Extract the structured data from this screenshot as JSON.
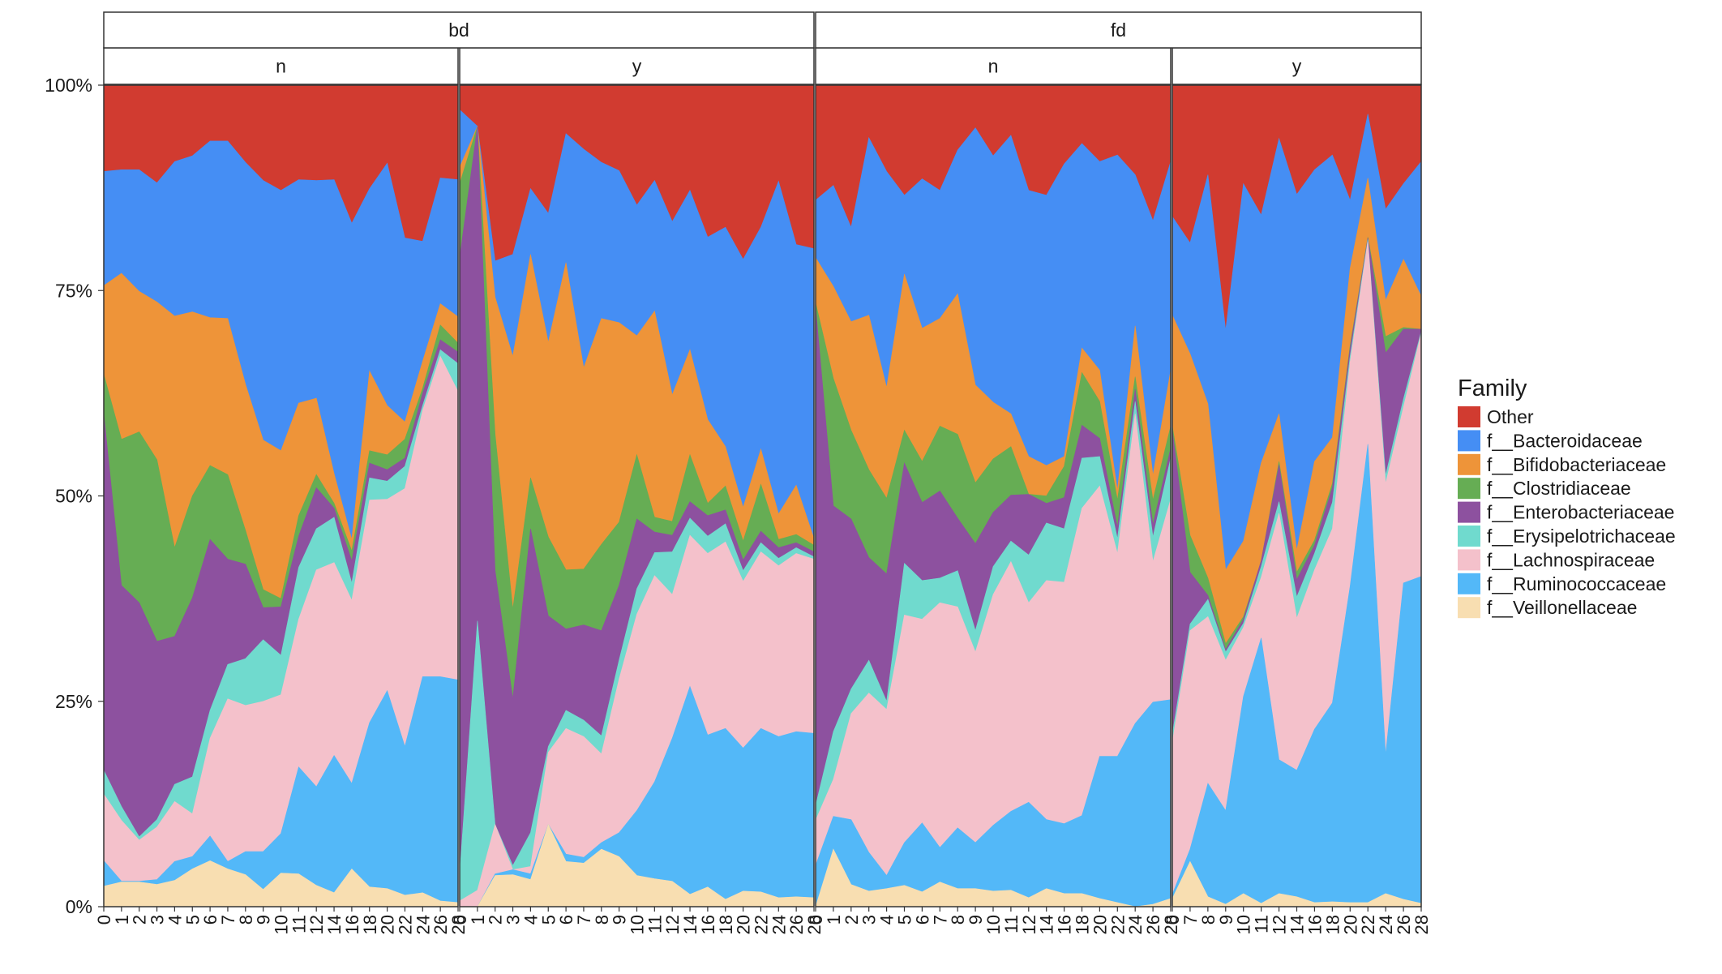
{
  "chart_data": {
    "type": "area",
    "stacking": "percent",
    "facet_rows": [
      "bd",
      "fd"
    ],
    "facet_sub": [
      "n",
      "y"
    ],
    "y_ticks": [
      "0%",
      "25%",
      "50%",
      "75%",
      "100%"
    ],
    "ylim": [
      0,
      1
    ],
    "grid": false,
    "legend": {
      "title": "Family",
      "position": "right",
      "items": [
        {
          "name": "Other",
          "color": "#D13B30"
        },
        {
          "name": "f__Bacteroidaceae",
          "color": "#458EF4"
        },
        {
          "name": "f__Bifidobacteriaceae",
          "color": "#EE9439"
        },
        {
          "name": "f__Clostridiaceae",
          "color": "#66AD54"
        },
        {
          "name": "f__Enterobacteriaceae",
          "color": "#8D519F"
        },
        {
          "name": "f__Erysipelotrichaceae",
          "color": "#70DACE"
        },
        {
          "name": "f__Lachnospiraceae",
          "color": "#F4C1CB"
        },
        {
          "name": "f__Ruminococcaceae",
          "color": "#53B8F8"
        },
        {
          "name": "f__Veillonellaceae",
          "color": "#F8DEB1"
        }
      ]
    },
    "panels": [
      {
        "facet": "bd",
        "sub": "n",
        "x": [
          "0",
          "1",
          "2",
          "3",
          "4",
          "5",
          "6",
          "7",
          "8",
          "9",
          "10",
          "11",
          "12",
          "14",
          "16",
          "18",
          "20",
          "22",
          "24",
          "26",
          "28"
        ],
        "boundaries": [
          [
            0.025,
            0.03,
            0.03,
            0.027,
            0.032,
            0.046,
            0.056,
            0.046,
            0.039,
            0.021,
            0.041,
            0.04,
            0.026,
            0.017,
            0.046,
            0.024,
            0.022,
            0.014,
            0.017,
            0.007,
            0.005
          ],
          [
            0.056,
            0.031,
            0.031,
            0.033,
            0.055,
            0.061,
            0.086,
            0.055,
            0.067,
            0.067,
            0.089,
            0.17,
            0.146,
            0.184,
            0.15,
            0.224,
            0.263,
            0.195,
            0.28,
            0.28,
            0.276
          ],
          [
            0.137,
            0.105,
            0.081,
            0.097,
            0.128,
            0.113,
            0.205,
            0.253,
            0.245,
            0.25,
            0.258,
            0.35,
            0.41,
            0.419,
            0.373,
            0.495,
            0.496,
            0.509,
            0.604,
            0.67,
            0.627
          ],
          [
            0.166,
            0.122,
            0.085,
            0.106,
            0.149,
            0.158,
            0.239,
            0.295,
            0.302,
            0.325,
            0.306,
            0.413,
            0.46,
            0.474,
            0.394,
            0.522,
            0.518,
            0.536,
            0.61,
            0.678,
            0.661
          ],
          [
            0.6,
            0.391,
            0.37,
            0.323,
            0.329,
            0.376,
            0.447,
            0.423,
            0.417,
            0.364,
            0.365,
            0.451,
            0.51,
            0.485,
            0.421,
            0.54,
            0.532,
            0.546,
            0.625,
            0.69,
            0.675
          ],
          [
            0.648,
            0.569,
            0.578,
            0.544,
            0.437,
            0.5,
            0.537,
            0.526,
            0.458,
            0.386,
            0.375,
            0.476,
            0.526,
            0.491,
            0.433,
            0.555,
            0.55,
            0.569,
            0.631,
            0.708,
            0.686
          ],
          [
            0.756,
            0.771,
            0.749,
            0.736,
            0.719,
            0.724,
            0.717,
            0.716,
            0.636,
            0.568,
            0.555,
            0.613,
            0.619,
            0.527,
            0.447,
            0.652,
            0.61,
            0.59,
            0.664,
            0.734,
            0.718
          ],
          [
            0.895,
            0.897,
            0.897,
            0.881,
            0.907,
            0.914,
            0.932,
            0.932,
            0.906,
            0.884,
            0.872,
            0.885,
            0.884,
            0.885,
            0.832,
            0.874,
            0.905,
            0.814,
            0.81,
            0.887,
            0.885
          ]
        ]
      },
      {
        "facet": "bd",
        "sub": "y",
        "x": [
          "0",
          "1",
          "2",
          "3",
          "4",
          "5",
          "6",
          "7",
          "8",
          "9",
          "10",
          "11",
          "12",
          "14",
          "16",
          "18",
          "20",
          "22",
          "24",
          "26",
          "28"
        ],
        "boundaries": [
          [
            0.0,
            0.0,
            0.038,
            0.039,
            0.033,
            0.1,
            0.055,
            0.053,
            0.07,
            0.061,
            0.038,
            0.034,
            0.031,
            0.015,
            0.024,
            0.009,
            0.019,
            0.018,
            0.011,
            0.012,
            0.011
          ],
          [
            0.0,
            0.0,
            0.04,
            0.045,
            0.04,
            0.1,
            0.064,
            0.06,
            0.078,
            0.09,
            0.117,
            0.152,
            0.205,
            0.268,
            0.209,
            0.217,
            0.193,
            0.217,
            0.207,
            0.213,
            0.211
          ],
          [
            0.007,
            0.02,
            0.1,
            0.045,
            0.049,
            0.188,
            0.217,
            0.207,
            0.186,
            0.277,
            0.356,
            0.403,
            0.38,
            0.452,
            0.43,
            0.444,
            0.396,
            0.432,
            0.415,
            0.43,
            0.423
          ],
          [
            0.04,
            0.348,
            0.1,
            0.05,
            0.09,
            0.195,
            0.239,
            0.227,
            0.208,
            0.3,
            0.387,
            0.431,
            0.432,
            0.473,
            0.451,
            0.466,
            0.409,
            0.443,
            0.424,
            0.437,
            0.426
          ],
          [
            0.79,
            0.95,
            0.409,
            0.253,
            0.46,
            0.354,
            0.338,
            0.343,
            0.336,
            0.391,
            0.472,
            0.456,
            0.452,
            0.493,
            0.476,
            0.483,
            0.422,
            0.457,
            0.437,
            0.443,
            0.432
          ],
          [
            0.88,
            0.95,
            0.575,
            0.362,
            0.522,
            0.45,
            0.41,
            0.411,
            0.441,
            0.468,
            0.55,
            0.474,
            0.469,
            0.55,
            0.491,
            0.512,
            0.445,
            0.514,
            0.447,
            0.453,
            0.44
          ],
          [
            0.9,
            0.95,
            0.742,
            0.67,
            0.794,
            0.687,
            0.784,
            0.656,
            0.716,
            0.711,
            0.695,
            0.725,
            0.623,
            0.678,
            0.593,
            0.56,
            0.486,
            0.557,
            0.478,
            0.513,
            0.448
          ],
          [
            0.97,
            0.95,
            0.786,
            0.794,
            0.874,
            0.844,
            0.941,
            0.922,
            0.906,
            0.896,
            0.854,
            0.884,
            0.834,
            0.872,
            0.815,
            0.827,
            0.788,
            0.827,
            0.883,
            0.806,
            0.801
          ]
        ]
      },
      {
        "facet": "fd",
        "sub": "n",
        "x": [
          "0",
          "1",
          "2",
          "3",
          "4",
          "5",
          "6",
          "7",
          "8",
          "9",
          "10",
          "11",
          "12",
          "14",
          "16",
          "18",
          "20",
          "22",
          "24",
          "26",
          "28"
        ],
        "boundaries": [
          [
            0.0,
            0.07,
            0.027,
            0.019,
            0.022,
            0.026,
            0.018,
            0.03,
            0.022,
            0.022,
            0.019,
            0.02,
            0.011,
            0.022,
            0.016,
            0.016,
            0.01,
            0.005,
            0.0,
            0.003,
            0.01
          ],
          [
            0.05,
            0.11,
            0.106,
            0.066,
            0.038,
            0.078,
            0.102,
            0.072,
            0.096,
            0.078,
            0.099,
            0.116,
            0.127,
            0.106,
            0.101,
            0.111,
            0.183,
            0.183,
            0.223,
            0.249,
            0.252
          ],
          [
            0.105,
            0.155,
            0.235,
            0.26,
            0.24,
            0.355,
            0.35,
            0.37,
            0.365,
            0.31,
            0.38,
            0.42,
            0.37,
            0.397,
            0.395,
            0.485,
            0.512,
            0.43,
            0.6,
            0.42,
            0.496
          ],
          [
            0.123,
            0.213,
            0.265,
            0.3,
            0.25,
            0.418,
            0.397,
            0.4,
            0.409,
            0.336,
            0.414,
            0.445,
            0.428,
            0.467,
            0.46,
            0.546,
            0.548,
            0.448,
            0.615,
            0.45,
            0.546
          ],
          [
            0.73,
            0.488,
            0.472,
            0.425,
            0.405,
            0.54,
            0.492,
            0.506,
            0.473,
            0.442,
            0.48,
            0.501,
            0.502,
            0.491,
            0.498,
            0.586,
            0.57,
            0.462,
            0.63,
            0.465,
            0.558
          ],
          [
            0.735,
            0.643,
            0.58,
            0.532,
            0.497,
            0.58,
            0.542,
            0.585,
            0.575,
            0.516,
            0.545,
            0.56,
            0.502,
            0.5,
            0.536,
            0.65,
            0.615,
            0.495,
            0.645,
            0.495,
            0.585
          ],
          [
            0.79,
            0.755,
            0.712,
            0.72,
            0.632,
            0.77,
            0.704,
            0.716,
            0.746,
            0.635,
            0.614,
            0.6,
            0.548,
            0.537,
            0.548,
            0.68,
            0.653,
            0.507,
            0.707,
            0.525,
            0.653
          ],
          [
            0.86,
            0.878,
            0.827,
            0.936,
            0.895,
            0.866,
            0.886,
            0.872,
            0.921,
            0.948,
            0.914,
            0.939,
            0.872,
            0.866,
            0.904,
            0.929,
            0.907,
            0.915,
            0.891,
            0.835,
            0.907
          ]
        ]
      },
      {
        "facet": "fd",
        "sub": "y",
        "x": [
          "0",
          "7",
          "8",
          "9",
          "10",
          "11",
          "12",
          "14",
          "16",
          "18",
          "20",
          "22",
          "24",
          "26",
          "28"
        ],
        "boundaries": [
          [
            0.01,
            0.055,
            0.012,
            0.003,
            0.016,
            0.004,
            0.016,
            0.012,
            0.005,
            0.006,
            0.005,
            0.005,
            0.016,
            0.009,
            0.004
          ],
          [
            0.015,
            0.07,
            0.15,
            0.117,
            0.256,
            0.327,
            0.179,
            0.166,
            0.216,
            0.248,
            0.39,
            0.563,
            0.185,
            0.394,
            0.402
          ],
          [
            0.2,
            0.336,
            0.353,
            0.3,
            0.34,
            0.401,
            0.479,
            0.351,
            0.41,
            0.46,
            0.663,
            0.81,
            0.515,
            0.608,
            0.698
          ],
          [
            0.21,
            0.344,
            0.374,
            0.31,
            0.345,
            0.414,
            0.493,
            0.377,
            0.43,
            0.492,
            0.67,
            0.812,
            0.525,
            0.618,
            0.7
          ],
          [
            0.58,
            0.407,
            0.379,
            0.313,
            0.35,
            0.421,
            0.538,
            0.398,
            0.44,
            0.51,
            0.68,
            0.814,
            0.674,
            0.703,
            0.703
          ],
          [
            0.585,
            0.452,
            0.4,
            0.32,
            0.353,
            0.42,
            0.542,
            0.407,
            0.446,
            0.515,
            0.683,
            0.815,
            0.694,
            0.705,
            0.703
          ],
          [
            0.72,
            0.673,
            0.612,
            0.41,
            0.445,
            0.54,
            0.6,
            0.434,
            0.542,
            0.571,
            0.777,
            0.887,
            0.738,
            0.788,
            0.743
          ],
          [
            0.84,
            0.808,
            0.891,
            0.702,
            0.88,
            0.842,
            0.935,
            0.867,
            0.897,
            0.915,
            0.86,
            0.965,
            0.849,
            0.88,
            0.907
          ]
        ]
      }
    ]
  }
}
